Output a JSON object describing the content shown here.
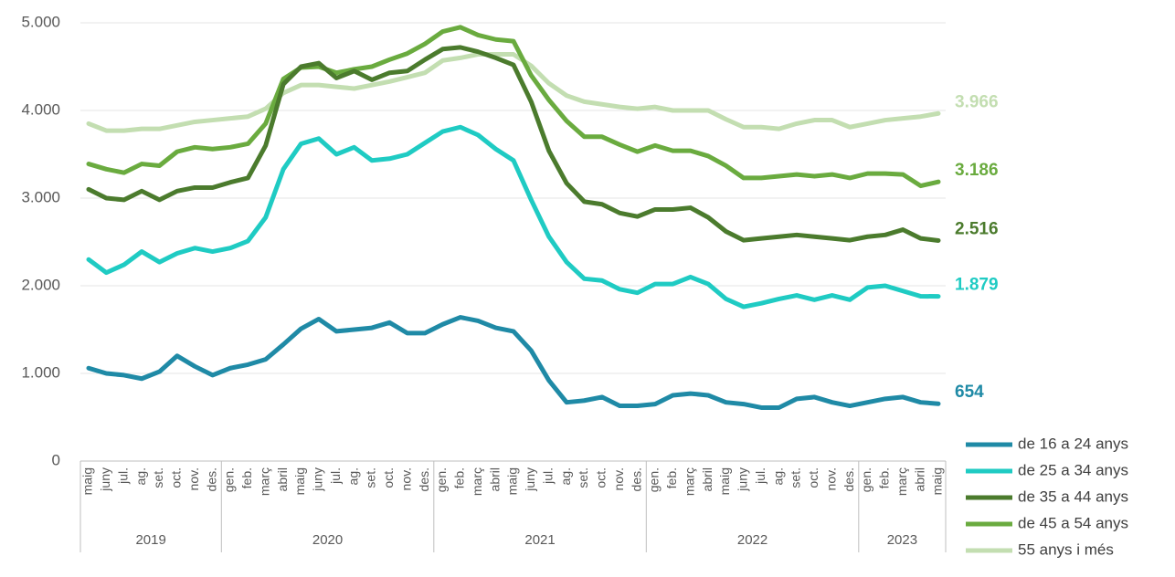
{
  "chart_data": {
    "type": "line",
    "categories": [
      "maig",
      "juny",
      "jul.",
      "ag.",
      "set.",
      "oct.",
      "nov.",
      "des.",
      "gen.",
      "feb.",
      "març",
      "abril",
      "maig",
      "juny",
      "jul.",
      "ag.",
      "set.",
      "oct.",
      "nov.",
      "des.",
      "gen.",
      "feb.",
      "març",
      "abril",
      "maig",
      "juny",
      "jul.",
      "ag.",
      "set.",
      "oct.",
      "nov.",
      "des.",
      "gen.",
      "feb.",
      "març",
      "abril",
      "maig",
      "juny",
      "jul.",
      "ag.",
      "set.",
      "oct.",
      "nov.",
      "des.",
      "gen.",
      "feb.",
      "març",
      "abril",
      "maig"
    ],
    "year_groups": [
      {
        "label": "2019",
        "size": 8
      },
      {
        "label": "2020",
        "size": 12
      },
      {
        "label": "2021",
        "size": 12
      },
      {
        "label": "2022",
        "size": 12
      },
      {
        "label": "2023",
        "size": 5
      }
    ],
    "ylim": [
      0,
      5000
    ],
    "yticks": [
      0,
      {
        "value": 1000,
        "label": "1.000"
      },
      {
        "value": 2000,
        "label": "2.000"
      },
      {
        "value": 3000,
        "label": "3.000"
      },
      {
        "value": 4000,
        "label": "4.000"
      },
      {
        "value": 5000,
        "label": "5.000"
      }
    ],
    "grid": true,
    "legend": "bottom-right",
    "series": [
      {
        "name": "de 16 a 24 anys",
        "color": "#1f8aa6",
        "end_label": "654",
        "values": [
          1060,
          1000,
          980,
          940,
          1020,
          1200,
          1080,
          980,
          1060,
          1100,
          1160,
          1330,
          1510,
          1620,
          1480,
          1500,
          1520,
          1580,
          1460,
          1460,
          1560,
          1640,
          1600,
          1520,
          1480,
          1260,
          920,
          670,
          690,
          730,
          630,
          630,
          650,
          750,
          770,
          750,
          670,
          650,
          610,
          610,
          710,
          730,
          670,
          630,
          670,
          710,
          730,
          670,
          654
        ]
      },
      {
        "name": "de 25 a 34 anys",
        "color": "#1fcbc3",
        "end_label": "1.879",
        "values": [
          2300,
          2150,
          2240,
          2390,
          2270,
          2370,
          2430,
          2390,
          2430,
          2510,
          2780,
          3330,
          3620,
          3680,
          3500,
          3580,
          3430,
          3450,
          3500,
          3630,
          3760,
          3810,
          3720,
          3560,
          3430,
          2980,
          2560,
          2270,
          2080,
          2060,
          1960,
          1920,
          2020,
          2020,
          2100,
          2020,
          1850,
          1760,
          1800,
          1850,
          1890,
          1840,
          1890,
          1840,
          1980,
          2000,
          1940,
          1880,
          1879
        ]
      },
      {
        "name": "de 35 a 44 anys",
        "color": "#4b7b2d",
        "end_label": "2.516",
        "values": [
          3100,
          3000,
          2980,
          3080,
          2980,
          3080,
          3120,
          3120,
          3180,
          3230,
          3600,
          4300,
          4500,
          4540,
          4370,
          4450,
          4350,
          4430,
          4450,
          4580,
          4700,
          4720,
          4670,
          4600,
          4520,
          4100,
          3540,
          3170,
          2960,
          2930,
          2830,
          2790,
          2870,
          2870,
          2890,
          2780,
          2620,
          2520,
          2540,
          2560,
          2580,
          2560,
          2540,
          2520,
          2560,
          2580,
          2640,
          2540,
          2516
        ]
      },
      {
        "name": "de 45 a 54 anys",
        "color": "#6aab3f",
        "end_label": "3.186",
        "values": [
          3390,
          3330,
          3290,
          3390,
          3370,
          3530,
          3580,
          3560,
          3580,
          3620,
          3850,
          4360,
          4490,
          4500,
          4430,
          4470,
          4500,
          4580,
          4650,
          4760,
          4900,
          4950,
          4860,
          4810,
          4790,
          4400,
          4120,
          3880,
          3700,
          3700,
          3610,
          3530,
          3600,
          3540,
          3540,
          3480,
          3370,
          3230,
          3230,
          3250,
          3270,
          3250,
          3270,
          3230,
          3280,
          3280,
          3270,
          3140,
          3186
        ]
      },
      {
        "name": "55 anys i més",
        "color": "#c3deb1",
        "end_label": "3.966",
        "values": [
          3850,
          3770,
          3770,
          3790,
          3790,
          3830,
          3870,
          3890,
          3910,
          3930,
          4020,
          4200,
          4290,
          4290,
          4270,
          4250,
          4290,
          4330,
          4380,
          4430,
          4570,
          4600,
          4640,
          4640,
          4640,
          4510,
          4310,
          4170,
          4100,
          4070,
          4040,
          4020,
          4040,
          4000,
          4000,
          4000,
          3900,
          3810,
          3810,
          3790,
          3850,
          3890,
          3890,
          3810,
          3850,
          3890,
          3910,
          3930,
          3966
        ]
      }
    ]
  }
}
